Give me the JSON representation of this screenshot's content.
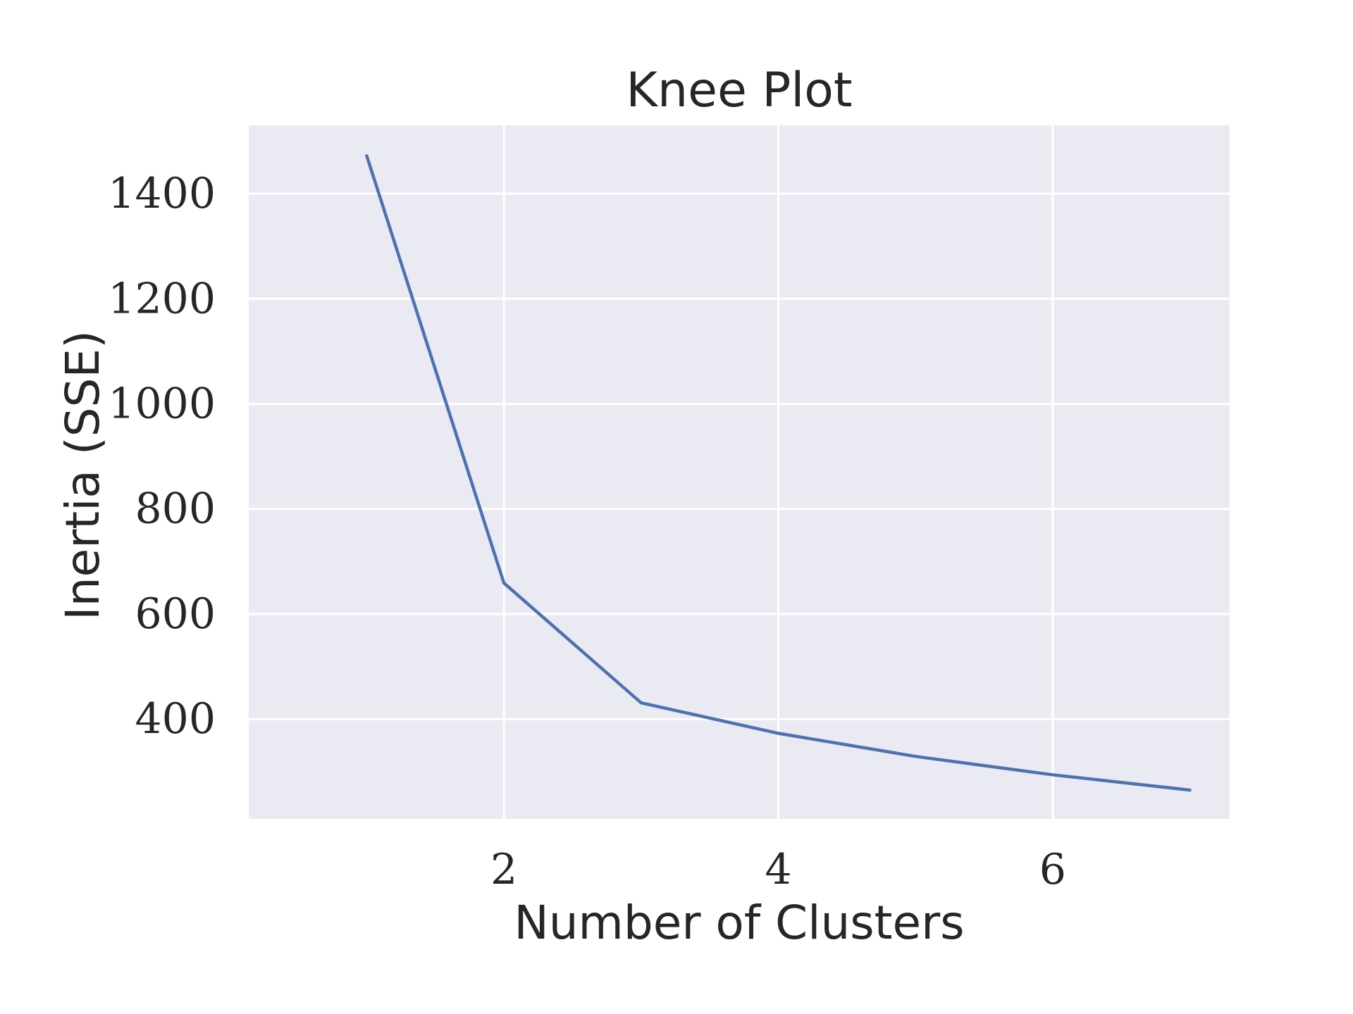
{
  "chart_data": {
    "type": "line",
    "title": "Knee Plot",
    "xlabel": "Number of Clusters",
    "ylabel": "Inertia (SSE)",
    "x": [
      1,
      2,
      3,
      4,
      5,
      6,
      7
    ],
    "series": [
      {
        "values": [
          1472,
          659,
          431,
          373,
          329,
          294,
          265
        ]
      }
    ],
    "xlim": [
      0.14,
      7.29
    ],
    "ylim": [
      210,
      1530
    ],
    "xticks": [
      2,
      4,
      6
    ],
    "yticks": [
      400,
      600,
      800,
      1000,
      1200,
      1400
    ],
    "grid": true,
    "colors": {
      "plot_background": "#eaeaf2",
      "grid": "#ffffff",
      "line": "#4c72b0",
      "text": "#262626"
    }
  }
}
